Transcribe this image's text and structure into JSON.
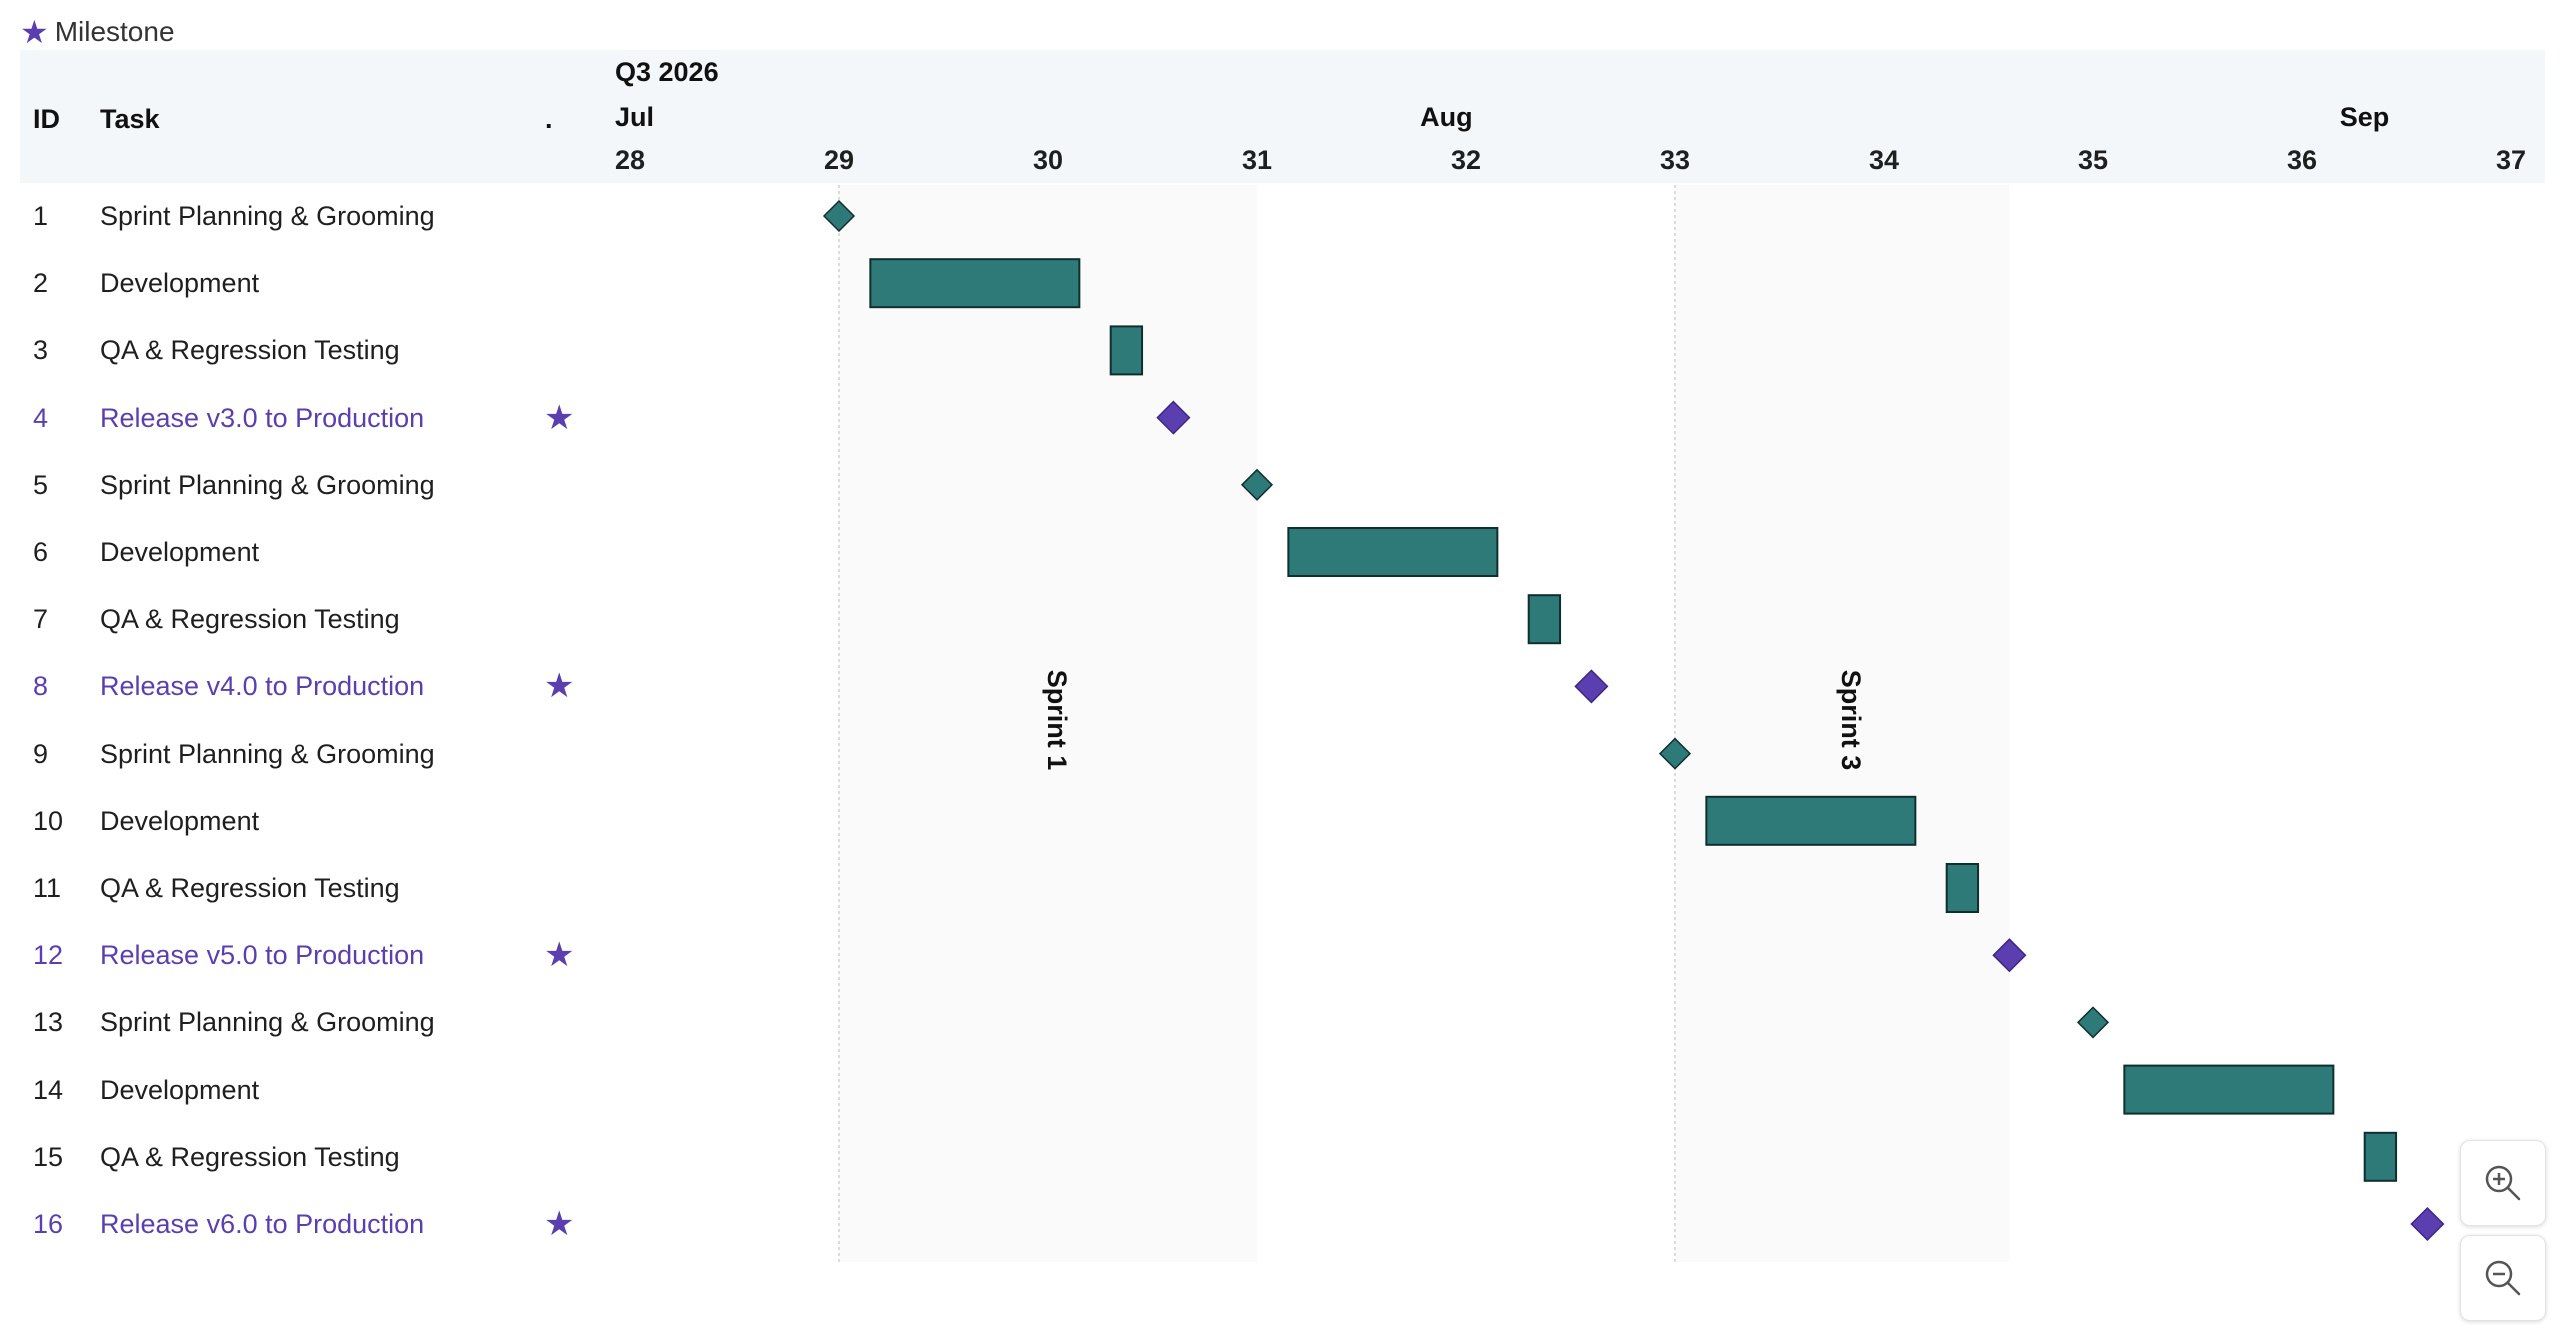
{
  "legend": {
    "label": "Milestone",
    "icon": "star-icon",
    "color": "#5b3fb0"
  },
  "header": {
    "col_id": "ID",
    "col_task": "Task",
    "col_flag": ".",
    "quarter": "Q3 2026",
    "months": [
      {
        "label": "Jul",
        "week": 28
      },
      {
        "label": "Aug",
        "week": 31.9
      },
      {
        "label": "Sep",
        "week": 36.3
      }
    ],
    "weeks": [
      "28",
      "29",
      "30",
      "31",
      "32",
      "33",
      "34",
      "35",
      "36",
      "37"
    ]
  },
  "sprints": [
    {
      "label": "Sprint 1",
      "start_week": 29,
      "end_week": 31
    },
    {
      "label": "Sprint 3",
      "start_week": 33,
      "end_week": 34.6
    }
  ],
  "colors": {
    "task": "#2e7a78",
    "milestone": "#5b3fb0",
    "bar_border": "#0f2f2e"
  },
  "tasks": [
    {
      "id": "1",
      "name": "Sprint Planning & Grooming",
      "type": "point",
      "start": 29.0
    },
    {
      "id": "2",
      "name": "Development",
      "type": "bar",
      "start": 29.15,
      "end": 30.15
    },
    {
      "id": "3",
      "name": "QA & Regression Testing",
      "type": "bar",
      "start": 30.3,
      "end": 30.45
    },
    {
      "id": "4",
      "name": "Release v3.0 to Production",
      "type": "milestone",
      "start": 30.6
    },
    {
      "id": "5",
      "name": "Sprint Planning & Grooming",
      "type": "point",
      "start": 31.0
    },
    {
      "id": "6",
      "name": "Development",
      "type": "bar",
      "start": 31.15,
      "end": 32.15
    },
    {
      "id": "7",
      "name": "QA & Regression Testing",
      "type": "bar",
      "start": 32.3,
      "end": 32.45
    },
    {
      "id": "8",
      "name": "Release v4.0 to Production",
      "type": "milestone",
      "start": 32.6
    },
    {
      "id": "9",
      "name": "Sprint Planning & Grooming",
      "type": "point",
      "start": 33.0
    },
    {
      "id": "10",
      "name": "Development",
      "type": "bar",
      "start": 33.15,
      "end": 34.15
    },
    {
      "id": "11",
      "name": "QA & Regression Testing",
      "type": "bar",
      "start": 34.3,
      "end": 34.45
    },
    {
      "id": "12",
      "name": "Release v5.0 to Production",
      "type": "milestone",
      "start": 34.6
    },
    {
      "id": "13",
      "name": "Sprint Planning & Grooming",
      "type": "point",
      "start": 35.0
    },
    {
      "id": "14",
      "name": "Development",
      "type": "bar",
      "start": 35.15,
      "end": 36.15
    },
    {
      "id": "15",
      "name": "QA & Regression Testing",
      "type": "bar",
      "start": 36.3,
      "end": 36.45
    },
    {
      "id": "16",
      "name": "Release v6.0 to Production",
      "type": "milestone",
      "start": 36.6
    }
  ],
  "zoom": {
    "in_icon": "zoom-in-icon",
    "out_icon": "zoom-out-icon"
  }
}
